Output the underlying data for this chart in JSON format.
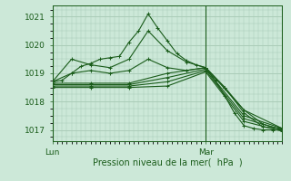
{
  "bg_color": "#cce8d8",
  "grid_color": "#aaccb8",
  "line_color": "#1a5c1a",
  "axis_label_color": "#1a5c1a",
  "tick_label_color": "#1a5c1a",
  "xlabel": "Pression niveau de la mer(  hPa  )",
  "xlim": [
    0,
    48
  ],
  "ylim": [
    1016.6,
    1021.4
  ],
  "yticks": [
    1017,
    1018,
    1019,
    1020,
    1021
  ],
  "lun_x": 0,
  "mar_x": 32,
  "series": [
    [
      0,
      1018.7,
      2,
      1018.75,
      4,
      1019.0,
      6,
      1019.25,
      8,
      1019.35,
      10,
      1019.5,
      12,
      1019.55,
      14,
      1019.6,
      16,
      1020.1,
      18,
      1020.5,
      20,
      1021.1,
      22,
      1020.6,
      24,
      1020.15,
      26,
      1019.7,
      28,
      1019.45,
      30,
      1019.3,
      32,
      1019.2,
      34,
      1018.75,
      36,
      1018.2,
      38,
      1017.6,
      40,
      1017.15,
      42,
      1017.05,
      44,
      1017.0,
      46,
      1017.0,
      48,
      1017.0
    ],
    [
      0,
      1018.7,
      4,
      1019.5,
      8,
      1019.3,
      12,
      1019.2,
      16,
      1019.5,
      20,
      1020.5,
      24,
      1019.8,
      28,
      1019.4,
      32,
      1019.2,
      36,
      1018.5,
      40,
      1017.6,
      44,
      1017.1,
      48,
      1017.05
    ],
    [
      0,
      1018.7,
      4,
      1019.0,
      8,
      1019.1,
      12,
      1019.0,
      16,
      1019.1,
      20,
      1019.5,
      24,
      1019.2,
      28,
      1019.1,
      32,
      1019.2,
      36,
      1018.5,
      40,
      1017.7,
      44,
      1017.2,
      48,
      1017.0
    ],
    [
      0,
      1018.65,
      8,
      1018.65,
      16,
      1018.65,
      24,
      1019.0,
      32,
      1019.2,
      40,
      1017.7,
      48,
      1017.05
    ],
    [
      0,
      1018.6,
      8,
      1018.6,
      16,
      1018.6,
      24,
      1018.85,
      32,
      1019.15,
      40,
      1017.5,
      48,
      1017.05
    ],
    [
      0,
      1018.55,
      8,
      1018.55,
      16,
      1018.55,
      24,
      1018.7,
      32,
      1019.1,
      40,
      1017.4,
      48,
      1017.0
    ],
    [
      0,
      1018.5,
      8,
      1018.5,
      16,
      1018.5,
      24,
      1018.55,
      32,
      1019.05,
      40,
      1017.3,
      48,
      1016.95
    ]
  ]
}
